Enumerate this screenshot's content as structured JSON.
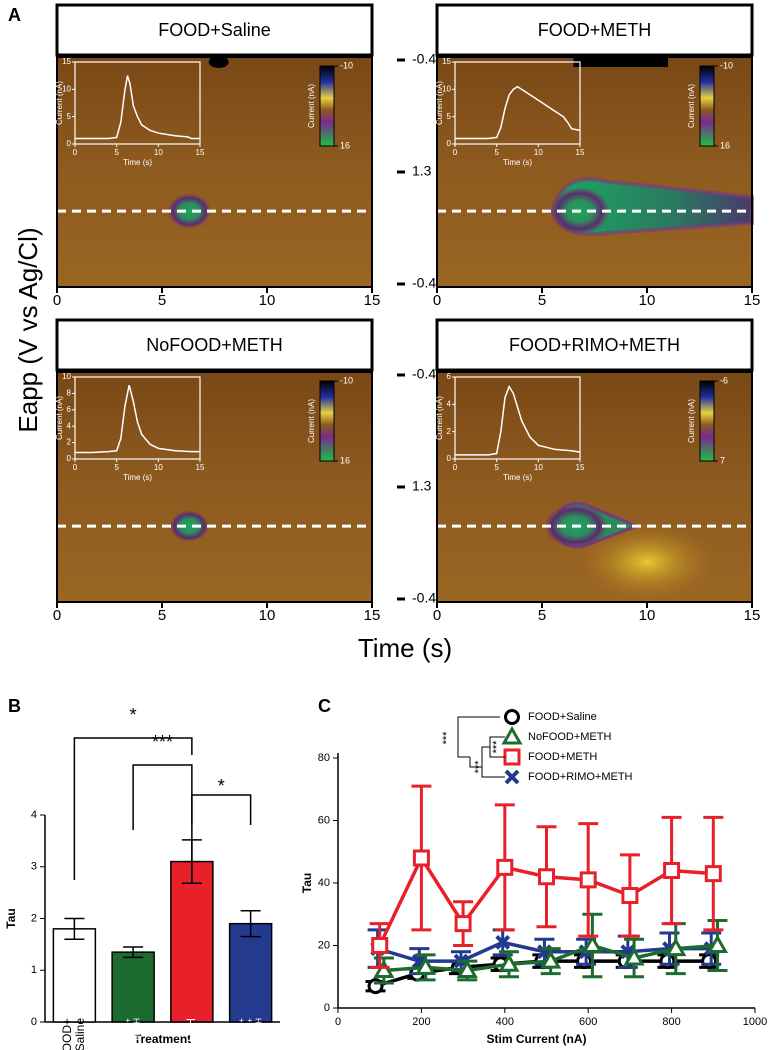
{
  "panel_labels": [
    "A",
    "B",
    "C"
  ],
  "shared_axes": {
    "ylabel": "Eapp (V vs Ag/Cl)",
    "xlabel": "Time (s)"
  },
  "chart_data": [
    {
      "type": "colorplot",
      "title": "FOOD+Saline",
      "xlim": [
        0,
        15
      ],
      "xticks": [
        0,
        5,
        10,
        15
      ],
      "yticks": [
        -0.4,
        1.3,
        -0.4
      ],
      "inset": {
        "type": "line",
        "xlim": [
          0,
          15
        ],
        "xticks": [
          0,
          5,
          10,
          15
        ],
        "ylim": [
          0,
          15
        ],
        "yticks": [
          0,
          5,
          10,
          15
        ],
        "xlabel": "Time (s)",
        "ylabel": "Current (nA)",
        "x": [
          0,
          2,
          4,
          5,
          5.5,
          6,
          6.3,
          6.6,
          7,
          7.5,
          8,
          9,
          10,
          12,
          13.5,
          14,
          15
        ],
        "values": [
          1,
          1,
          1,
          1.2,
          4,
          10,
          12.5,
          11,
          7,
          5,
          3.5,
          2.5,
          2,
          1.5,
          1.3,
          1,
          1
        ]
      },
      "colorbar": {
        "ticks": [
          -10,
          16
        ],
        "label": "Current (nA)"
      }
    },
    {
      "type": "colorplot",
      "title": "FOOD+METH",
      "xlim": [
        0,
        15
      ],
      "xticks": [
        0,
        5,
        10,
        15
      ],
      "inset": {
        "type": "line",
        "xlim": [
          0,
          15
        ],
        "xticks": [
          0,
          5,
          10,
          15
        ],
        "ylim": [
          0,
          15
        ],
        "yticks": [
          0,
          5,
          10,
          15
        ],
        "xlabel": "Time (s)",
        "ylabel": "Current (nA)",
        "x": [
          0,
          2,
          4,
          5,
          5.5,
          6,
          6.5,
          7,
          7.5,
          8,
          9,
          10,
          11,
          12,
          13,
          13.5,
          14,
          15
        ],
        "values": [
          1,
          1,
          1,
          1.2,
          3,
          6.5,
          9,
          10,
          10.5,
          10,
          9,
          8,
          7,
          6,
          5,
          4,
          2.8,
          2.5
        ]
      },
      "colorbar": {
        "ticks": [
          -10,
          16
        ],
        "label": "Current (nA)"
      }
    },
    {
      "type": "colorplot",
      "title": "NoFOOD+METH",
      "xlim": [
        0,
        15
      ],
      "xticks": [
        0,
        5,
        10,
        15
      ],
      "yticks": [
        -0.4,
        1.3,
        -0.4
      ],
      "inset": {
        "type": "line",
        "xlim": [
          0,
          15
        ],
        "xticks": [
          0,
          5,
          10,
          15
        ],
        "ylim": [
          0,
          10
        ],
        "yticks": [
          0,
          2,
          4,
          6,
          8,
          10
        ],
        "xlabel": "Time (s)",
        "ylabel": "Current (nA)",
        "x": [
          0,
          2,
          4,
          5,
          5.5,
          6,
          6.5,
          7,
          7.5,
          8,
          9,
          10,
          12,
          14,
          15
        ],
        "values": [
          0.8,
          0.8,
          0.9,
          1,
          2.5,
          6.5,
          9,
          7,
          4.5,
          3,
          1.8,
          1.3,
          1,
          0.9,
          0.9
        ]
      },
      "colorbar": {
        "ticks": [
          -10,
          16
        ],
        "label": "Current (nA)"
      }
    },
    {
      "type": "colorplot",
      "title": "FOOD+RIMO+METH",
      "xlim": [
        0,
        15
      ],
      "xticks": [
        0,
        5,
        10,
        15
      ],
      "inset": {
        "type": "line",
        "xlim": [
          0,
          15
        ],
        "xticks": [
          0,
          5,
          10,
          15
        ],
        "ylim": [
          0,
          6
        ],
        "yticks": [
          0,
          2,
          4,
          6
        ],
        "xlabel": "Time (s)",
        "ylabel": "Current (nA)",
        "x": [
          0,
          2,
          4,
          5,
          5.5,
          6,
          6.5,
          7,
          7.5,
          8,
          9,
          10,
          12,
          14,
          15
        ],
        "values": [
          0.3,
          0.3,
          0.3,
          0.4,
          2,
          4.5,
          5.3,
          4.8,
          3.8,
          2.8,
          1.6,
          1,
          0.7,
          0.6,
          0.5
        ]
      },
      "colorbar": {
        "ticks": [
          -6,
          7
        ],
        "label": "Current (nA)"
      }
    },
    {
      "type": "bar",
      "ylabel": "Tau",
      "xlabel": "Treatment",
      "ylim": [
        0,
        4
      ],
      "yticks": [
        0,
        1,
        2,
        3,
        4
      ],
      "categories": [
        "FOOD+\nSaline",
        "NoFOOD+\nMETH",
        "FOOD+METH",
        "FOOD+\nRIMO+\nMETH"
      ],
      "values": [
        1.8,
        1.35,
        3.1,
        1.9
      ],
      "errors": [
        0.2,
        0.1,
        0.42,
        0.25
      ],
      "colors": [
        "#ffffff",
        "#1e6b30",
        "#e8202a",
        "#233a8f"
      ],
      "annotations": [
        "*",
        "***",
        "*"
      ]
    },
    {
      "type": "line",
      "ylabel": "Tau",
      "xlabel": "Stim Current (nA)",
      "xlim": [
        0,
        1000
      ],
      "xticks": [
        0,
        200,
        400,
        600,
        800,
        1000
      ],
      "ylim": [
        0,
        80
      ],
      "yticks": [
        0,
        20,
        40,
        60,
        80
      ],
      "legend": "top-right",
      "annotations": [
        "***",
        "***",
        "***"
      ],
      "series": [
        {
          "name": "FOOD+Saline",
          "color": "#000000",
          "marker": "circle",
          "x": [
            90,
            190,
            290,
            390,
            490,
            590,
            690,
            790,
            890
          ],
          "values": [
            7,
            11,
            13,
            14,
            15,
            15,
            15,
            15,
            15
          ],
          "errors": [
            1.5,
            1.5,
            2,
            2,
            2,
            2,
            2,
            2,
            2
          ]
        },
        {
          "name": "NoFOOD+METH",
          "color": "#1e6b30",
          "marker": "triangle",
          "x": [
            110,
            210,
            310,
            410,
            510,
            610,
            710,
            810,
            910
          ],
          "values": [
            12,
            13,
            12,
            14,
            15,
            20,
            16,
            19,
            20
          ],
          "errors": [
            4,
            4,
            3,
            4,
            4,
            10,
            6,
            8,
            8
          ]
        },
        {
          "name": "FOOD+METH",
          "color": "#e8202a",
          "marker": "square",
          "x": [
            100,
            200,
            300,
            400,
            500,
            600,
            700,
            800,
            900
          ],
          "values": [
            20,
            48,
            27,
            45,
            42,
            41,
            36,
            44,
            43
          ],
          "errors": [
            7,
            23,
            7,
            20,
            16,
            18,
            13,
            17,
            18
          ]
        },
        {
          "name": "FOOD+RIMO+METH",
          "color": "#233a8f",
          "marker": "x",
          "x": [
            95,
            195,
            295,
            395,
            495,
            595,
            695,
            795,
            895
          ],
          "values": [
            19,
            15,
            15,
            21,
            18,
            18,
            18,
            19,
            19
          ],
          "errors": [
            6,
            4,
            3,
            4,
            4,
            4,
            5,
            5,
            5
          ]
        }
      ]
    }
  ]
}
